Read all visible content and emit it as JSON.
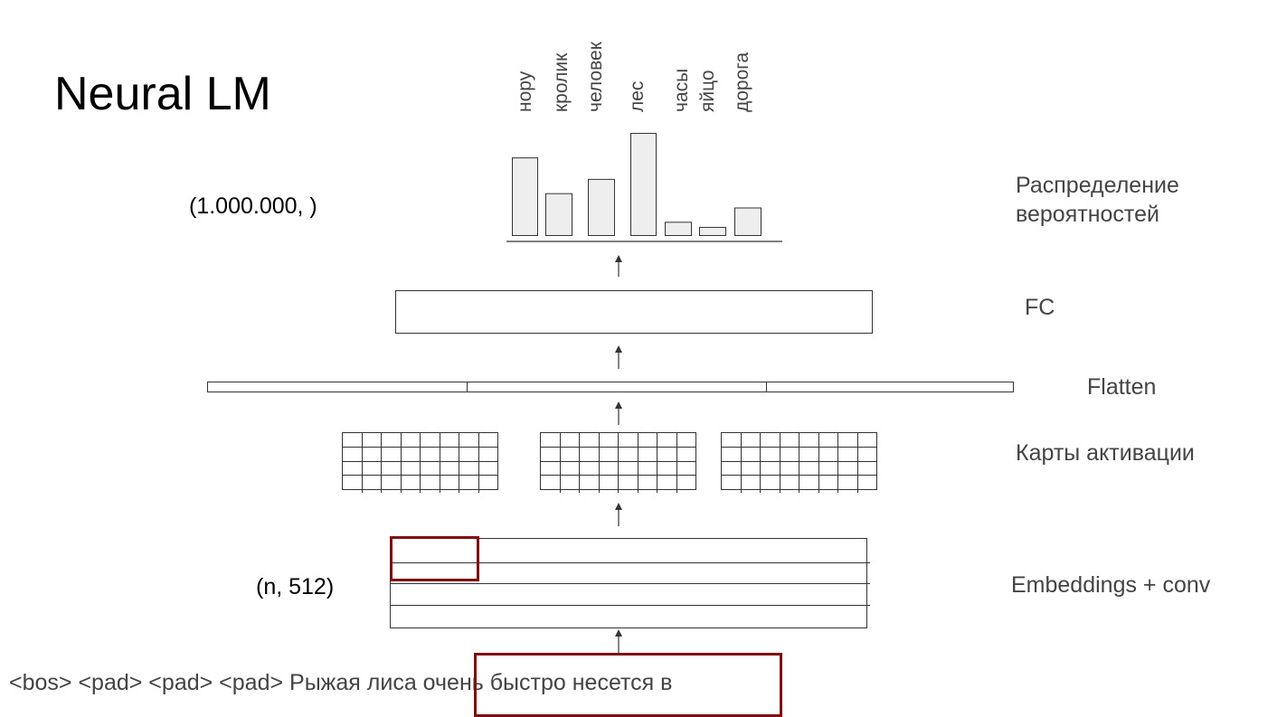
{
  "title": "Neural LM",
  "output_shape": "(1.000.000, )",
  "embeddings_shape": "(n, 512)",
  "input_sentence": "<bos> <pad> <pad> <pad> Рыжая лиса очень быстро несется в",
  "layer_labels": {
    "distribution_line1": "Распределение",
    "distribution_line2": "вероятностей",
    "fc": "FC",
    "flatten": "Flatten",
    "activation_maps": "Карты активации",
    "embeddings_conv": "Embeddings + conv"
  },
  "colors": {
    "highlight": "#7f0f0f",
    "bar_fill": "#eeeeee",
    "stroke": "#333333",
    "label_text": "#444444"
  },
  "chart_data": {
    "type": "bar",
    "categories": [
      "нору",
      "кролик",
      "человек",
      "лес",
      "часы",
      "яйцо",
      "дорога"
    ],
    "values": [
      0.76,
      0.41,
      0.55,
      1.0,
      0.13,
      0.08,
      0.27
    ],
    "axis_labels_rotated": true,
    "grid": false
  }
}
